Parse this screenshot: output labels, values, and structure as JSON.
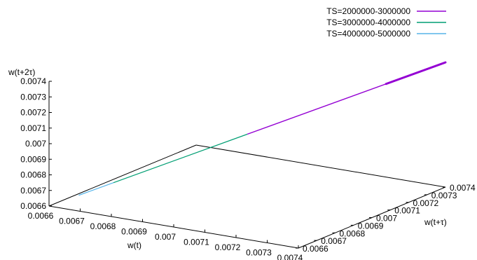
{
  "chart_data": {
    "type": "line",
    "subtype": "3d-phase-space",
    "title": "",
    "xlabel": "w(t)",
    "ylabel": "w(t+τ)",
    "zlabel": "w(t+2τ)",
    "xlim": [
      0.0066,
      0.0074
    ],
    "ylim": [
      0.0066,
      0.0074
    ],
    "zlim": [
      0.0066,
      0.0074
    ],
    "x_ticks": [
      "0.0066",
      "0.0067",
      "0.0068",
      "0.0069",
      "0.007",
      "0.0071",
      "0.0072",
      "0.0073",
      "0.0074"
    ],
    "y_ticks": [
      "0.0066",
      "0.0067",
      "0.0068",
      "0.0069",
      "0.007",
      "0.0071",
      "0.0072",
      "0.0073",
      "0.0074"
    ],
    "z_ticks": [
      "0.0066",
      "0.0067",
      "0.0068",
      "0.0069",
      "0.007",
      "0.0071",
      "0.0072",
      "0.0073",
      "0.0074"
    ],
    "grid": false,
    "legend_position": "top-right",
    "series": [
      {
        "name": "TS=2000000-3000000",
        "color": "#9400d3",
        "from": [
          0.007,
          0.007,
          0.007
        ],
        "to": [
          0.0074,
          0.0074,
          0.0074
        ]
      },
      {
        "name": "TS=3000000-4000000",
        "color": "#009e73",
        "from": [
          0.00673,
          0.00673,
          0.00673
        ],
        "to": [
          0.007,
          0.007,
          0.007
        ]
      },
      {
        "name": "TS=4000000-5000000",
        "color": "#56b4e9",
        "from": [
          0.00666,
          0.00666,
          0.00666
        ],
        "to": [
          0.00673,
          0.00673,
          0.00673
        ]
      }
    ]
  }
}
